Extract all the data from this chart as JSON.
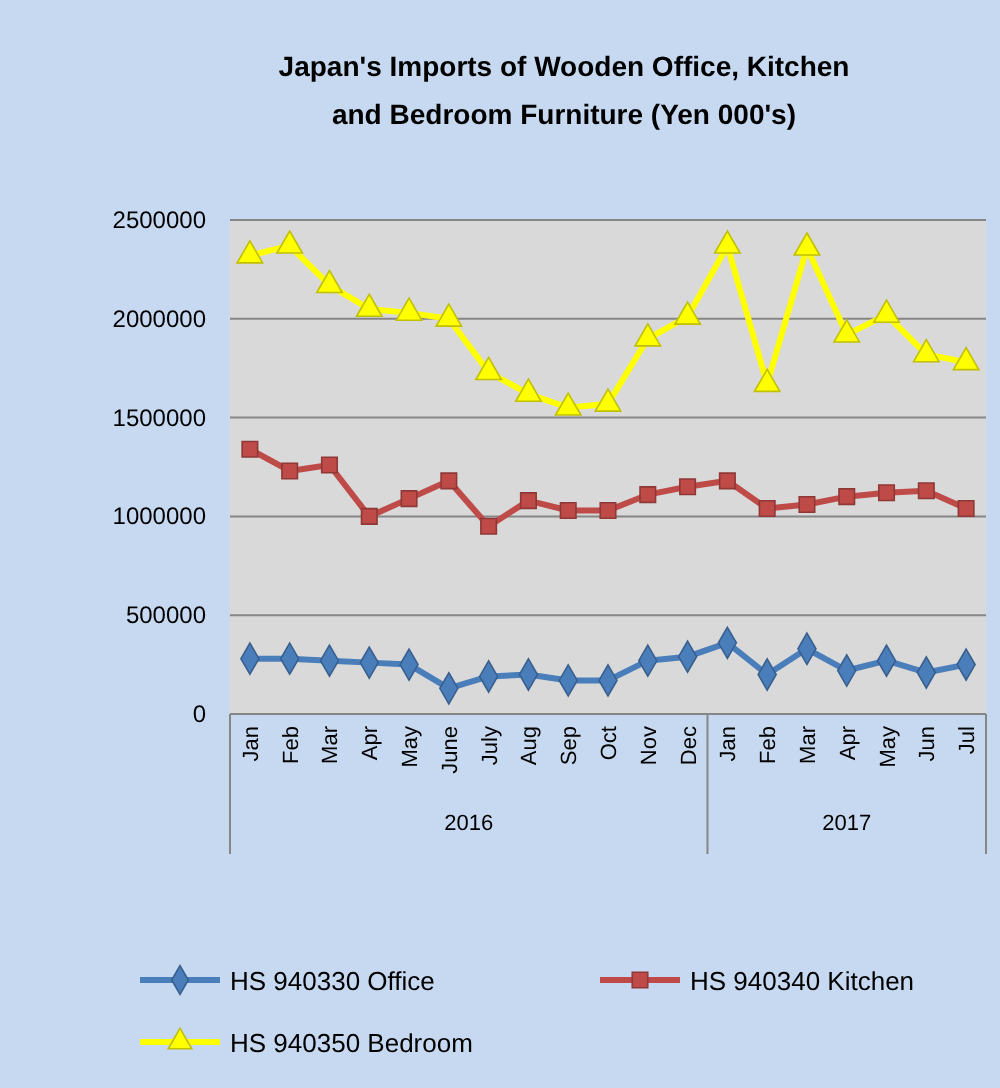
{
  "chart_data": {
    "type": "line",
    "title": "Japan's Imports of  Wooden  Office, Kitchen and Bedroom Furniture (Yen 000's)",
    "categories": [
      "Jan",
      "Feb",
      "Mar",
      "Apr",
      "May",
      "June",
      "July",
      "Aug",
      "Sep",
      "Oct",
      "Nov",
      "Dec",
      "Jan",
      "Feb",
      "Mar",
      "Apr",
      "May",
      "Jun",
      "Jul"
    ],
    "series": [
      {
        "name": "HS 940330 Office",
        "color": "#4a7ebb",
        "marker": "diamond",
        "values": [
          280000,
          280000,
          270000,
          260000,
          250000,
          130000,
          190000,
          200000,
          170000,
          170000,
          270000,
          290000,
          360000,
          200000,
          330000,
          220000,
          270000,
          210000,
          250000
        ]
      },
      {
        "name": "HS 940340 Kitchen",
        "color": "#be4b48",
        "marker": "square",
        "values": [
          1340000,
          1230000,
          1260000,
          1000000,
          1090000,
          1180000,
          950000,
          1080000,
          1030000,
          1030000,
          1110000,
          1150000,
          1180000,
          1040000,
          1060000,
          1100000,
          1120000,
          1130000,
          1040000
        ]
      },
      {
        "name": "HS 940350 Bedroom",
        "color": "#ffff00",
        "marker": "triangle",
        "values": [
          2320000,
          2370000,
          2170000,
          2050000,
          2030000,
          2000000,
          1730000,
          1620000,
          1550000,
          1570000,
          1900000,
          2010000,
          2370000,
          1670000,
          2360000,
          1920000,
          2020000,
          1820000,
          1780000
        ]
      }
    ],
    "annotations": [
      "2016",
      "2017"
    ],
    "ylim": [
      0,
      2500000
    ],
    "yticks": [
      0,
      500000,
      1000000,
      1500000,
      2000000,
      2500000
    ],
    "grid": "y",
    "legend": "bottom"
  }
}
